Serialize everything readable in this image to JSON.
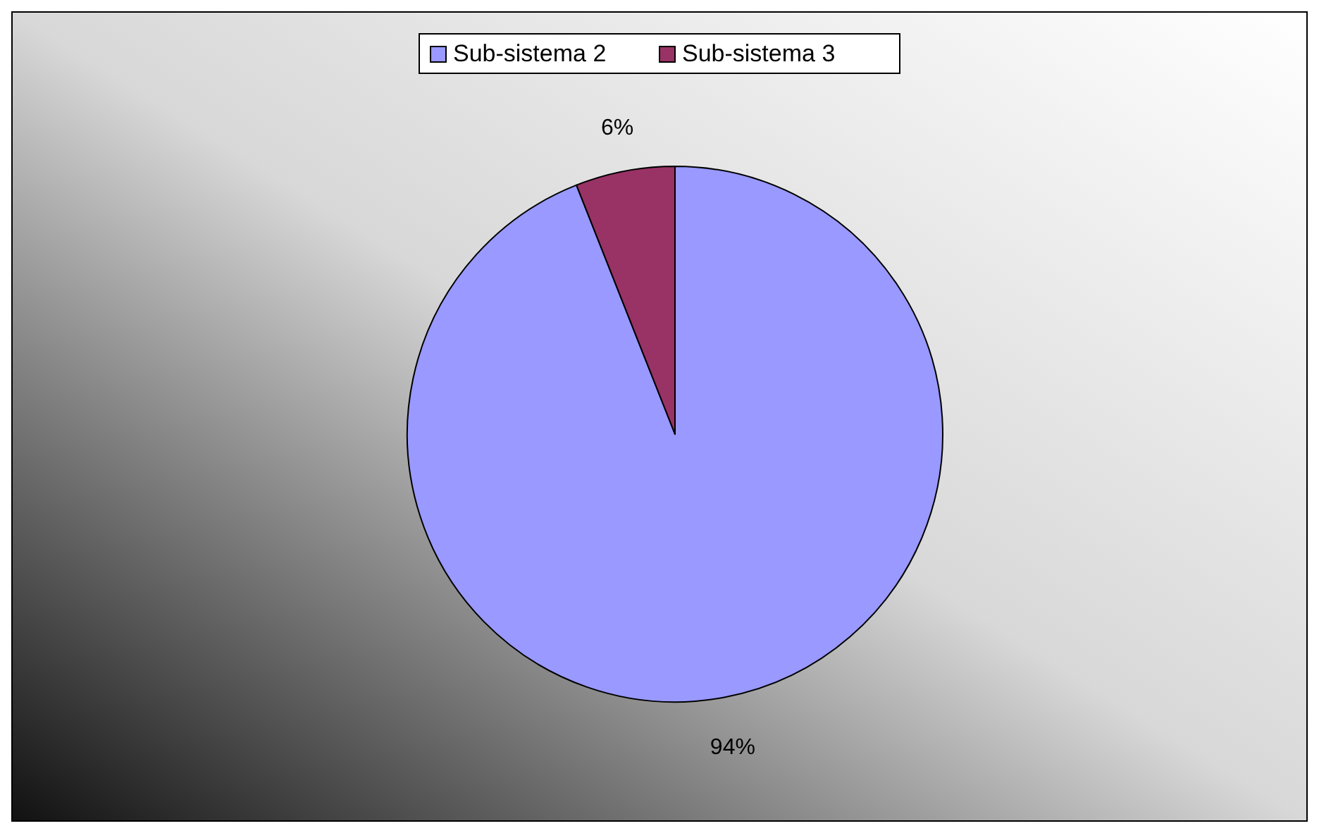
{
  "chart_data": {
    "type": "pie",
    "categories": [
      "Sub-sistema 2",
      "Sub-sistema 3"
    ],
    "values": [
      94,
      6
    ],
    "colors": [
      "#9999ff",
      "#993366"
    ],
    "value_labels": [
      "94%",
      "6%"
    ],
    "legend": "top"
  }
}
